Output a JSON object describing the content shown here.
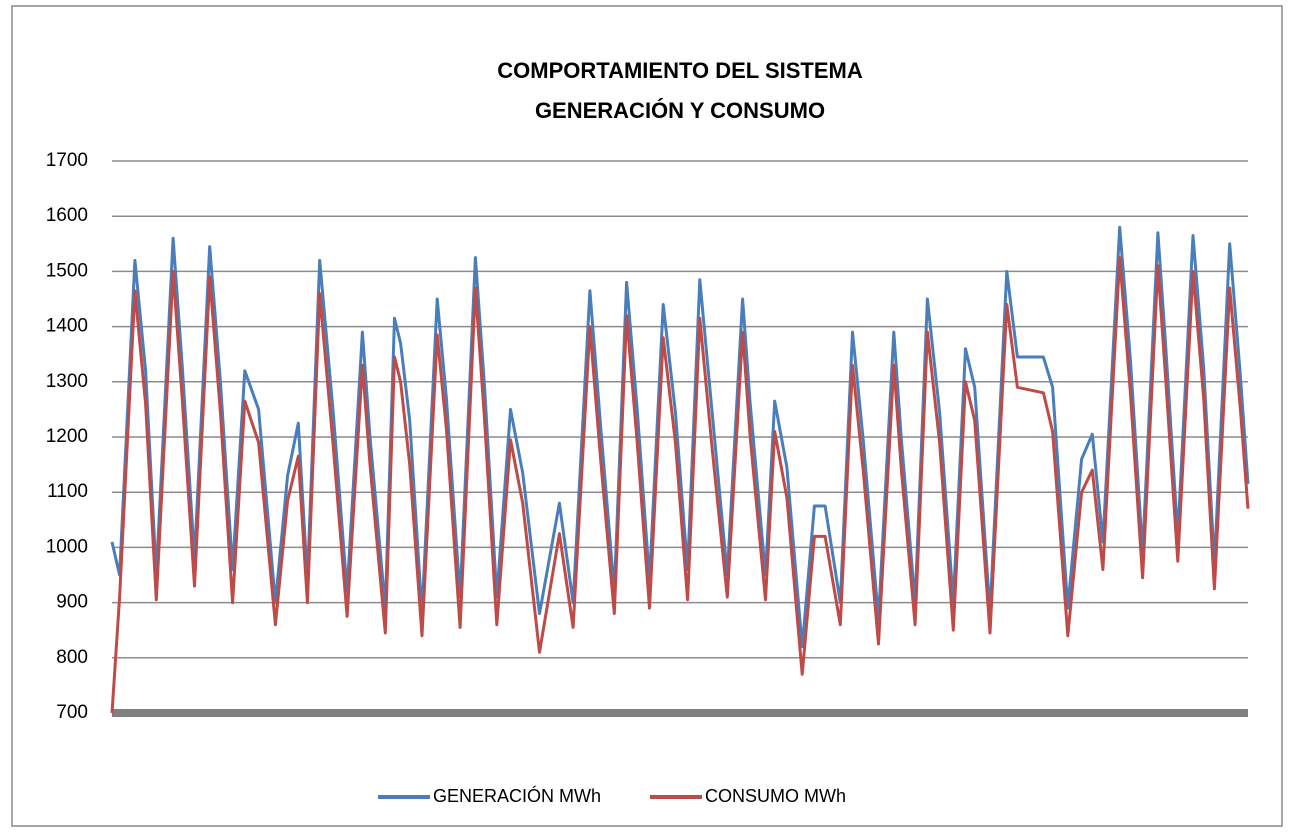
{
  "chart_data": {
    "type": "line",
    "title": [
      "COMPORTAMIENTO DEL SISTEMA",
      "GENERACIÓN Y CONSUMO"
    ],
    "x": [
      0,
      5,
      15,
      22,
      29,
      40,
      46,
      54,
      64,
      71,
      79,
      87,
      96,
      107,
      115,
      122,
      128,
      136,
      145,
      154,
      164,
      169,
      179,
      185,
      189,
      195,
      203,
      213,
      219,
      228,
      238,
      244,
      252,
      261,
      269,
      280,
      293,
      302,
      313,
      320,
      329,
      337,
      344,
      352,
      361,
      369,
      377,
      385,
      393,
      403,
      413,
      418,
      428,
      434,
      442,
      452,
      460,
      467,
      477,
      485,
      492,
      502,
      512,
      517,
      526,
      534,
      542,
      551,
      559,
      565,
      575,
      586,
      593,
      610,
      616,
      626,
      635,
      642,
      649,
      660,
      667,
      675,
      685,
      690,
      698,
      708,
      715,
      722,
      732,
      739,
      744
    ],
    "xlim": [
      0,
      744
    ],
    "ylim": [
      700,
      1700
    ],
    "yticks": [
      700,
      800,
      900,
      1000,
      1100,
      1200,
      1300,
      1400,
      1500,
      1600,
      1700
    ],
    "grid": true,
    "series": [
      {
        "name": "GENERACIÓN MWh",
        "color": "#4a7ebb",
        "values": [
          1010,
          950,
          1520,
          1320,
          950,
          1560,
          1330,
          980,
          1545,
          1300,
          960,
          1320,
          1250,
          900,
          1130,
          1225,
          940,
          1520,
          1240,
          920,
          1390,
          1200,
          890,
          1415,
          1370,
          1230,
          880,
          1450,
          1270,
          910,
          1525,
          1290,
          910,
          1250,
          1135,
          880,
          1080,
          900,
          1465,
          1220,
          920,
          1480,
          1250,
          940,
          1440,
          1245,
          960,
          1485,
          1245,
          950,
          1450,
          1260,
          950,
          1265,
          1145,
          820,
          1075,
          1075,
          900,
          1390,
          1195,
          870,
          1390,
          1195,
          900,
          1450,
          1245,
          900,
          1360,
          1290,
          880,
          1500,
          1345,
          1345,
          1290,
          890,
          1160,
          1205,
          1010,
          1580,
          1340,
          990,
          1570,
          1370,
          1020,
          1565,
          1325,
          970,
          1550,
          1310,
          1115
        ]
      },
      {
        "name": "CONSUMO MWh",
        "color": "#be4b48",
        "values": [
          700,
          910,
          1465,
          1260,
          905,
          1500,
          1270,
          930,
          1490,
          1245,
          900,
          1265,
          1190,
          860,
          1085,
          1165,
          900,
          1460,
          1180,
          875,
          1330,
          1150,
          845,
          1345,
          1300,
          1150,
          840,
          1385,
          1215,
          855,
          1470,
          1230,
          860,
          1195,
          1080,
          810,
          1025,
          855,
          1400,
          1160,
          880,
          1420,
          1190,
          890,
          1380,
          1190,
          905,
          1415,
          1180,
          910,
          1390,
          1200,
          905,
          1210,
          1090,
          770,
          1020,
          1020,
          860,
          1330,
          1140,
          825,
          1330,
          1140,
          860,
          1390,
          1190,
          850,
          1300,
          1230,
          845,
          1440,
          1290,
          1280,
          1210,
          840,
          1100,
          1140,
          960,
          1525,
          1280,
          945,
          1510,
          1310,
          975,
          1500,
          1270,
          925,
          1470,
          1250,
          1070
        ]
      }
    ]
  }
}
